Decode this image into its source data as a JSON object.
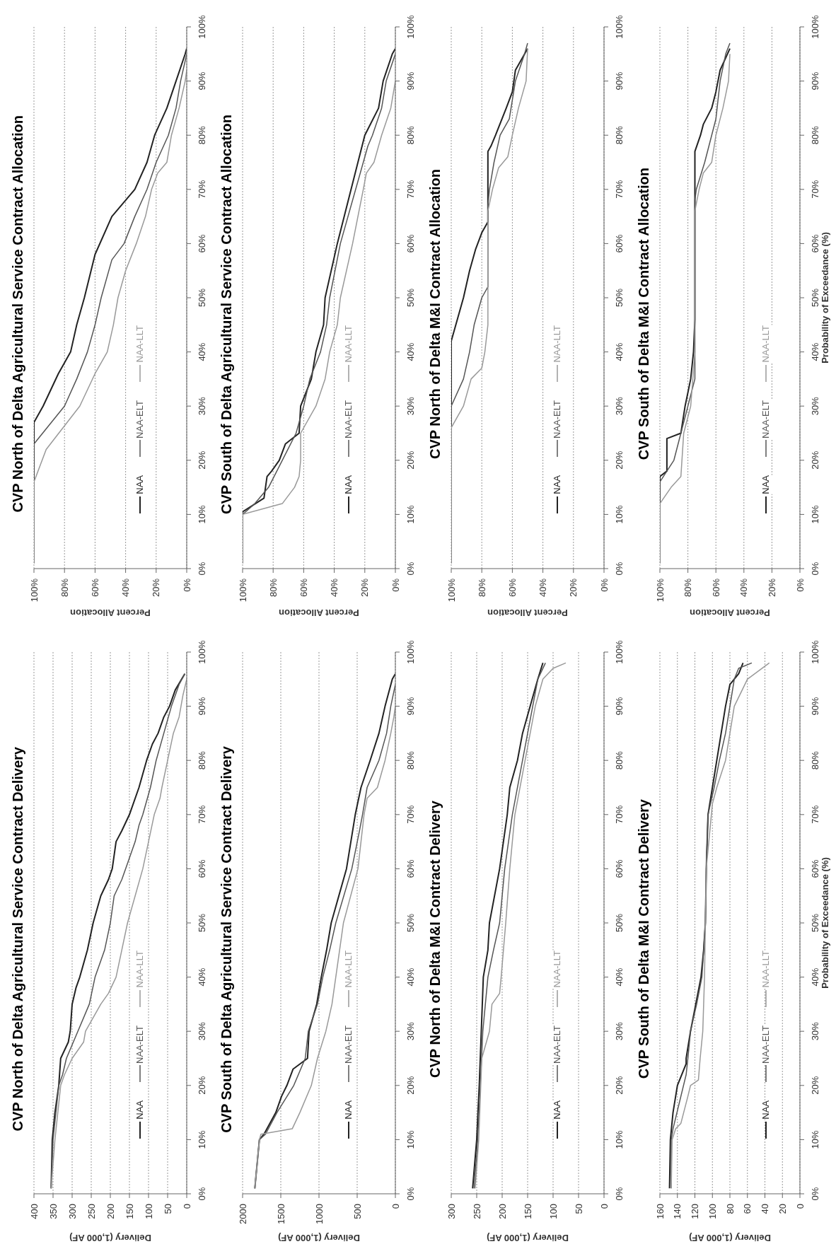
{
  "chart_data": [
    {
      "type": "line",
      "title": "CVP North of Delta Agricultural Service Contract Delivery",
      "xlabel": "Delivery (1,000 AF)",
      "ylim": [
        0,
        100
      ],
      "yticks": [
        {
          "value": 0,
          "label": "0%"
        },
        {
          "value": 10,
          "label": "10%"
        },
        {
          "value": 20,
          "label": "20%"
        },
        {
          "value": 30,
          "label": "30%"
        },
        {
          "value": 40,
          "label": "40%"
        },
        {
          "value": 50,
          "label": "50%"
        },
        {
          "value": 60,
          "label": "60%"
        },
        {
          "value": 70,
          "label": "70%"
        },
        {
          "value": 80,
          "label": "80%"
        },
        {
          "value": 90,
          "label": "90%"
        },
        {
          "value": 100,
          "label": "100%"
        }
      ],
      "xlim": [
        400,
        0
      ],
      "xticks": [
        0,
        50,
        100,
        150,
        200,
        250,
        300,
        350,
        400
      ],
      "grid": "x",
      "legend": "bottom right",
      "marker": "none",
      "line_style": "solid",
      "series": [
        {
          "name": "NAA",
          "color": "#222222",
          "values": [
            1,
            10,
            15,
            20,
            25,
            28,
            30,
            35,
            38,
            40,
            45,
            50,
            55,
            58,
            60,
            65,
            67,
            70,
            75,
            80,
            83,
            85,
            88,
            90,
            93,
            96
          ],
          "x": [
            355,
            352,
            345,
            335,
            330,
            310,
            305,
            300,
            290,
            280,
            260,
            245,
            225,
            205,
            195,
            185,
            170,
            150,
            125,
            105,
            90,
            75,
            60,
            45,
            30,
            5
          ]
        },
        {
          "name": "NAA-ELT",
          "color": "#555555",
          "values": [
            1,
            10,
            20,
            22,
            25,
            30,
            35,
            40,
            45,
            50,
            55,
            58,
            60,
            65,
            68,
            70,
            75,
            80,
            85,
            90,
            94,
            96
          ],
          "x": [
            355,
            350,
            335,
            325,
            315,
            285,
            255,
            240,
            215,
            200,
            190,
            170,
            160,
            135,
            125,
            115,
            95,
            80,
            60,
            40,
            20,
            5
          ]
        },
        {
          "name": "NAA-LLT",
          "color": "#999999",
          "values": [
            1,
            10,
            20,
            22,
            25,
            28,
            30,
            35,
            37,
            40,
            45,
            50,
            55,
            60,
            65,
            70,
            73,
            75,
            80,
            85,
            88,
            92,
            95
          ],
          "x": [
            355,
            345,
            330,
            320,
            300,
            270,
            265,
            225,
            205,
            185,
            170,
            155,
            135,
            115,
            100,
            85,
            70,
            65,
            50,
            35,
            20,
            10,
            0
          ]
        }
      ]
    },
    {
      "type": "line",
      "title": "CVP North of Delta Agricultural Service Contract Allocation",
      "xlabel": "Percent Allocation",
      "ylim": [
        0,
        100
      ],
      "yticks": [
        {
          "value": 0,
          "label": "0%"
        },
        {
          "value": 10,
          "label": "10%"
        },
        {
          "value": 20,
          "label": "20%"
        },
        {
          "value": 30,
          "label": "30%"
        },
        {
          "value": 40,
          "label": "40%"
        },
        {
          "value": 50,
          "label": "50%"
        },
        {
          "value": 60,
          "label": "60%"
        },
        {
          "value": 70,
          "label": "70%"
        },
        {
          "value": 80,
          "label": "80%"
        },
        {
          "value": 90,
          "label": "90%"
        },
        {
          "value": 100,
          "label": "100%"
        }
      ],
      "xlim": [
        100,
        0
      ],
      "xticks": [
        {
          "value": 0,
          "label": "0%"
        },
        {
          "value": 20,
          "label": "20%"
        },
        {
          "value": 40,
          "label": "40%"
        },
        {
          "value": 60,
          "label": "60%"
        },
        {
          "value": 80,
          "label": "80%"
        },
        {
          "value": 100,
          "label": "100%"
        }
      ],
      "grid": "x",
      "legend": "bottom right",
      "marker": "none",
      "line_style": "solid",
      "series": [
        {
          "name": "NAA",
          "color": "#222222",
          "values": [
            1,
            27,
            30,
            36,
            40,
            45,
            50,
            58,
            65,
            70,
            75,
            80,
            85,
            90,
            95,
            96
          ],
          "x": [
            100,
            100,
            94,
            84,
            76,
            72,
            67,
            60,
            49,
            34,
            26,
            21,
            13,
            7,
            1,
            0
          ]
        },
        {
          "name": "NAA-ELT",
          "color": "#555555",
          "values": [
            1,
            23,
            30,
            35,
            40,
            45,
            50,
            57,
            60,
            65,
            70,
            75,
            80,
            85,
            90,
            95
          ],
          "x": [
            100,
            100,
            80,
            72,
            65,
            60,
            56,
            49,
            41,
            34,
            26,
            20,
            12,
            7,
            4,
            0
          ]
        },
        {
          "name": "NAA-LLT",
          "color": "#999999",
          "values": [
            1,
            16,
            22,
            30,
            36,
            40,
            45,
            50,
            55,
            60,
            65,
            70,
            73,
            75,
            80,
            85,
            90,
            92
          ],
          "x": [
            100,
            100,
            92,
            70,
            60,
            52,
            48,
            45,
            40,
            33,
            27,
            23,
            19,
            13,
            10,
            5,
            1,
            0
          ]
        }
      ]
    },
    {
      "type": "line",
      "title": "CVP South of Delta Agricultural Service Contract Delivery",
      "xlabel": "Delivery (1,000 AF)",
      "ylim": [
        0,
        100
      ],
      "yticks": [
        {
          "value": 0,
          "label": "0%"
        },
        {
          "value": 10,
          "label": "10%"
        },
        {
          "value": 20,
          "label": "20%"
        },
        {
          "value": 30,
          "label": "30%"
        },
        {
          "value": 40,
          "label": "40%"
        },
        {
          "value": 50,
          "label": "50%"
        },
        {
          "value": 60,
          "label": "60%"
        },
        {
          "value": 70,
          "label": "70%"
        },
        {
          "value": 80,
          "label": "80%"
        },
        {
          "value": 90,
          "label": "90%"
        },
        {
          "value": 100,
          "label": "100%"
        }
      ],
      "xlim": [
        2000,
        0
      ],
      "xticks": [
        0,
        500,
        1000,
        1500,
        2000
      ],
      "grid": "x",
      "legend": "bottom right",
      "marker": "none",
      "line_style": "solid",
      "series": [
        {
          "name": "NAA",
          "color": "#222222",
          "values": [
            1,
            10,
            11,
            15,
            18,
            20,
            23,
            25,
            30,
            35,
            40,
            45,
            50,
            60,
            70,
            75,
            80,
            85,
            90,
            95,
            96
          ],
          "x": [
            1840,
            1780,
            1720,
            1565,
            1490,
            1420,
            1340,
            1150,
            1130,
            1030,
            970,
            900,
            840,
            640,
            525,
            450,
            330,
            215,
            135,
            40,
            0
          ]
        },
        {
          "name": "NAA-ELT",
          "color": "#555555",
          "values": [
            1,
            10,
            11,
            15,
            20,
            25,
            30,
            35,
            40,
            45,
            50,
            60,
            67,
            70,
            75,
            80,
            85,
            90,
            94
          ],
          "x": [
            1840,
            1780,
            1700,
            1550,
            1330,
            1180,
            1140,
            1020,
            950,
            860,
            780,
            570,
            470,
            430,
            370,
            215,
            115,
            60,
            0
          ]
        },
        {
          "name": "NAA-LLT",
          "color": "#999999",
          "values": [
            1,
            10,
            11,
            12,
            15,
            20,
            25,
            30,
            35,
            40,
            45,
            50,
            60,
            70,
            73,
            75,
            80,
            85,
            88,
            90
          ],
          "x": [
            1840,
            1780,
            1760,
            1350,
            1250,
            1100,
            1020,
            910,
            830,
            780,
            730,
            680,
            490,
            410,
            370,
            235,
            135,
            60,
            20,
            0
          ]
        }
      ]
    },
    {
      "type": "line",
      "title": "CVP South of Delta Agricultural Service Contract Allocation",
      "xlabel": "Percent Allocation",
      "ylim": [
        0,
        100
      ],
      "yticks": [
        {
          "value": 0,
          "label": "0%"
        },
        {
          "value": 10,
          "label": "10%"
        },
        {
          "value": 20,
          "label": "20%"
        },
        {
          "value": 30,
          "label": "30%"
        },
        {
          "value": 40,
          "label": "40%"
        },
        {
          "value": 50,
          "label": "50%"
        },
        {
          "value": 60,
          "label": "60%"
        },
        {
          "value": 70,
          "label": "70%"
        },
        {
          "value": 80,
          "label": "80%"
        },
        {
          "value": 90,
          "label": "90%"
        },
        {
          "value": 100,
          "label": "100%"
        }
      ],
      "xlim": [
        100,
        0
      ],
      "xticks": [
        {
          "value": 0,
          "label": "0%"
        },
        {
          "value": 20,
          "label": "20%"
        },
        {
          "value": 40,
          "label": "40%"
        },
        {
          "value": 60,
          "label": "60%"
        },
        {
          "value": 80,
          "label": "80%"
        },
        {
          "value": 100,
          "label": "100%"
        }
      ],
      "grid": "x",
      "legend": "bottom right",
      "marker": "none",
      "line_style": "solid",
      "series": [
        {
          "name": "NAA",
          "color": "#222222",
          "values": [
            1,
            10.5,
            13,
            17,
            18,
            20,
            23,
            25,
            30,
            35,
            40,
            45,
            50,
            60,
            70,
            80,
            85,
            90,
            95,
            96
          ],
          "x": [
            100,
            100,
            86,
            84,
            81,
            76,
            72,
            63,
            62,
            55,
            52,
            47,
            46,
            38,
            29,
            20,
            11,
            8,
            2,
            0
          ]
        },
        {
          "name": "NAA-ELT",
          "color": "#555555",
          "values": [
            1,
            10,
            12,
            15,
            20,
            25,
            30,
            35,
            40,
            45,
            50,
            60,
            70,
            78,
            80,
            85,
            90,
            95
          ],
          "x": [
            100,
            100,
            92,
            83,
            74,
            65,
            60,
            56,
            49,
            45,
            43,
            36,
            26,
            18,
            15,
            9,
            6,
            0
          ]
        },
        {
          "name": "NAA-LLT",
          "color": "#999999",
          "values": [
            1,
            10,
            12,
            15,
            17,
            20,
            25,
            30,
            35,
            40,
            45,
            50,
            60,
            70,
            73,
            75,
            80,
            85,
            90
          ],
          "x": [
            100,
            100,
            74,
            66,
            63,
            62,
            62,
            52,
            46,
            43,
            38,
            36,
            28,
            21,
            19,
            14,
            9,
            3,
            0
          ]
        }
      ]
    },
    {
      "type": "line",
      "title": "CVP North of Delta M&I Contract Delivery",
      "xlabel": "Delivery (1,000 AF)",
      "ylim": [
        0,
        100
      ],
      "yticks": [
        {
          "value": 0,
          "label": "0%"
        },
        {
          "value": 10,
          "label": "10%"
        },
        {
          "value": 20,
          "label": "20%"
        },
        {
          "value": 30,
          "label": "30%"
        },
        {
          "value": 40,
          "label": "40%"
        },
        {
          "value": 50,
          "label": "50%"
        },
        {
          "value": 60,
          "label": "60%"
        },
        {
          "value": 70,
          "label": "70%"
        },
        {
          "value": 80,
          "label": "80%"
        },
        {
          "value": 90,
          "label": "90%"
        },
        {
          "value": 100,
          "label": "100%"
        }
      ],
      "xlim": [
        300,
        0
      ],
      "xticks": [
        0,
        50,
        100,
        150,
        200,
        250,
        300
      ],
      "grid": "x",
      "legend": "bottom right",
      "marker": "none",
      "line_style": "solid",
      "series": [
        {
          "name": "NAA",
          "color": "#222222",
          "values": [
            1,
            10,
            20,
            30,
            40,
            45,
            50,
            60,
            70,
            75,
            80,
            85,
            90,
            95,
            98
          ],
          "x": [
            258,
            250,
            245,
            241,
            237,
            228,
            225,
            205,
            190,
            185,
            170,
            160,
            145,
            130,
            120
          ]
        },
        {
          "name": "NAA-ELT",
          "color": "#555555",
          "values": [
            1,
            10,
            20,
            30,
            40,
            45,
            50,
            60,
            70,
            80,
            85,
            90,
            95,
            98
          ],
          "x": [
            255,
            248,
            243,
            238,
            228,
            217,
            205,
            195,
            180,
            160,
            150,
            140,
            130,
            115
          ]
        },
        {
          "name": "NAA-LLT",
          "color": "#999999",
          "values": [
            1,
            10,
            20,
            25,
            30,
            35,
            37,
            40,
            50,
            60,
            70,
            80,
            90,
            95,
            97,
            98
          ],
          "x": [
            253,
            246,
            242,
            240,
            225,
            220,
            205,
            202,
            193,
            185,
            175,
            155,
            135,
            120,
            100,
            75
          ]
        }
      ]
    },
    {
      "type": "line",
      "title": "CVP North of Delta M&I Contract Allocation",
      "xlabel": "Percent Allocation",
      "ylim": [
        0,
        100
      ],
      "yticks": [
        {
          "value": 0,
          "label": "0%"
        },
        {
          "value": 10,
          "label": "10%"
        },
        {
          "value": 20,
          "label": "20%"
        },
        {
          "value": 30,
          "label": "30%"
        },
        {
          "value": 40,
          "label": "40%"
        },
        {
          "value": 50,
          "label": "50%"
        },
        {
          "value": 60,
          "label": "60%"
        },
        {
          "value": 70,
          "label": "70%"
        },
        {
          "value": 80,
          "label": "80%"
        },
        {
          "value": 90,
          "label": "90%"
        },
        {
          "value": 100,
          "label": "100%"
        }
      ],
      "xlim": [
        100,
        0
      ],
      "xticks": [
        {
          "value": 0,
          "label": "0%"
        },
        {
          "value": 20,
          "label": "20%"
        },
        {
          "value": 40,
          "label": "40%"
        },
        {
          "value": 60,
          "label": "60%"
        },
        {
          "value": 80,
          "label": "80%"
        },
        {
          "value": 100,
          "label": "100%"
        }
      ],
      "grid": "x",
      "legend": "bottom right",
      "marker": "none",
      "line_style": "solid",
      "series": [
        {
          "name": "NAA",
          "color": "#222222",
          "values": [
            1,
            42,
            47,
            50,
            55,
            59,
            62,
            64,
            77,
            78,
            80,
            85,
            88,
            92,
            96
          ],
          "x": [
            100,
            100,
            95,
            92,
            88,
            84,
            80,
            76,
            76,
            74,
            71,
            64,
            60,
            58,
            50
          ]
        },
        {
          "name": "NAA-ELT",
          "color": "#555555",
          "values": [
            1,
            30,
            35,
            40,
            45,
            50,
            52,
            67,
            70,
            75,
            80,
            83,
            90,
            95,
            97
          ],
          "x": [
            100,
            100,
            92,
            88,
            85,
            80,
            76,
            76,
            75,
            72,
            68,
            62,
            58,
            52,
            50
          ]
        },
        {
          "name": "NAA-LLT",
          "color": "#999999",
          "values": [
            1,
            26,
            30,
            35,
            37,
            40,
            45,
            50,
            66,
            70,
            74,
            76,
            80,
            85,
            90,
            96
          ],
          "x": [
            100,
            100,
            92,
            87,
            80,
            78,
            76,
            76,
            76,
            73,
            69,
            63,
            60,
            56,
            51,
            50
          ]
        }
      ]
    },
    {
      "type": "line",
      "title": "CVP South of Delta M&I Contract Delivery",
      "ylabel": "Probability of Exceedance (%)",
      "xlabel": "Delivery (1,000 AF)",
      "ylim": [
        0,
        100
      ],
      "yticks": [
        {
          "value": 0,
          "label": "0%"
        },
        {
          "value": 10,
          "label": "10%"
        },
        {
          "value": 20,
          "label": "20%"
        },
        {
          "value": 30,
          "label": "30%"
        },
        {
          "value": 40,
          "label": "40%"
        },
        {
          "value": 50,
          "label": "50%"
        },
        {
          "value": 60,
          "label": "60%"
        },
        {
          "value": 70,
          "label": "70%"
        },
        {
          "value": 80,
          "label": "80%"
        },
        {
          "value": 90,
          "label": "90%"
        },
        {
          "value": 100,
          "label": "100%"
        }
      ],
      "xlim": [
        160,
        0
      ],
      "xticks": [
        0,
        20,
        40,
        60,
        80,
        100,
        120,
        140,
        160
      ],
      "grid": "x",
      "legend": "bottom right",
      "marker": "none",
      "line_style": "solid",
      "series": [
        {
          "name": "NAA",
          "color": "#222222",
          "values": [
            1,
            10,
            15,
            20,
            24,
            25,
            30,
            35,
            40,
            45,
            50,
            60,
            70,
            75,
            80,
            85,
            90,
            94,
            96,
            98
          ],
          "x": [
            149,
            148,
            145,
            140,
            130,
            130,
            125,
            119,
            113,
            110,
            108,
            107,
            105,
            100,
            95,
            90,
            85,
            80,
            70,
            65
          ]
        },
        {
          "name": "NAA-ELT",
          "color": "#555555",
          "values": [
            1,
            10,
            12,
            18,
            22,
            25,
            30,
            35,
            40,
            50,
            60,
            70,
            75,
            80,
            85,
            90,
            95,
            97,
            98
          ],
          "x": [
            147,
            147,
            145,
            136,
            130,
            128,
            125,
            118,
            112,
            108,
            107,
            105,
            98,
            92,
            85,
            80,
            75,
            70,
            55
          ]
        },
        {
          "name": "NAA-LLT",
          "color": "#999999",
          "values": [
            1,
            10,
            12,
            13,
            18,
            20,
            21,
            25,
            30,
            35,
            40,
            50,
            60,
            72,
            75,
            80,
            85,
            90,
            95,
            98
          ],
          "x": [
            147,
            146,
            142,
            136,
            128,
            125,
            116,
            114,
            111,
            110,
            109,
            108,
            107,
            100,
            95,
            85,
            80,
            75,
            60,
            35
          ]
        }
      ]
    },
    {
      "type": "line",
      "title": "CVP South of Delta M&I Contract Allocation",
      "ylabel": "Probability of Exceedance (%)",
      "xlabel": "Percent Allocation",
      "ylim": [
        0,
        100
      ],
      "yticks": [
        {
          "value": 0,
          "label": "0%"
        },
        {
          "value": 10,
          "label": "10%"
        },
        {
          "value": 20,
          "label": "20%"
        },
        {
          "value": 30,
          "label": "30%"
        },
        {
          "value": 40,
          "label": "40%"
        },
        {
          "value": 50,
          "label": "50%"
        },
        {
          "value": 60,
          "label": "60%"
        },
        {
          "value": 70,
          "label": "70%"
        },
        {
          "value": 80,
          "label": "80%"
        },
        {
          "value": 90,
          "label": "90%"
        },
        {
          "value": 100,
          "label": "100%"
        }
      ],
      "xlim": [
        100,
        0
      ],
      "xticks": [
        {
          "value": 0,
          "label": "0%"
        },
        {
          "value": 20,
          "label": "20%"
        },
        {
          "value": 40,
          "label": "40%"
        },
        {
          "value": 60,
          "label": "60%"
        },
        {
          "value": 80,
          "label": "80%"
        },
        {
          "value": 100,
          "label": "100%"
        }
      ],
      "grid": "x",
      "legend": "bottom right",
      "marker": "none",
      "line_style": "solid",
      "series": [
        {
          "name": "NAA",
          "color": "#222222",
          "values": [
            1,
            17,
            18,
            24,
            25,
            30,
            35,
            40,
            46,
            77,
            80,
            82,
            85,
            88,
            92,
            96
          ],
          "x": [
            100,
            100,
            95,
            95,
            85,
            82,
            78,
            76,
            75,
            75,
            71,
            69,
            63,
            60,
            57,
            50
          ]
        },
        {
          "name": "NAA-ELT",
          "color": "#555555",
          "values": [
            1,
            16,
            20,
            25,
            30,
            35,
            68,
            70,
            75,
            80,
            83,
            90,
            95,
            97
          ],
          "x": [
            100,
            100,
            90,
            85,
            80,
            75,
            75,
            74,
            68,
            63,
            60,
            57,
            53,
            50
          ]
        },
        {
          "name": "NAA-LLT",
          "color": "#999999",
          "values": [
            1,
            12,
            15,
            17,
            25,
            30,
            40,
            66,
            70,
            73,
            75,
            80,
            85,
            90,
            95
          ],
          "x": [
            100,
            100,
            92,
            85,
            83,
            78,
            75,
            75,
            72,
            69,
            63,
            60,
            55,
            51,
            50
          ]
        }
      ]
    }
  ]
}
